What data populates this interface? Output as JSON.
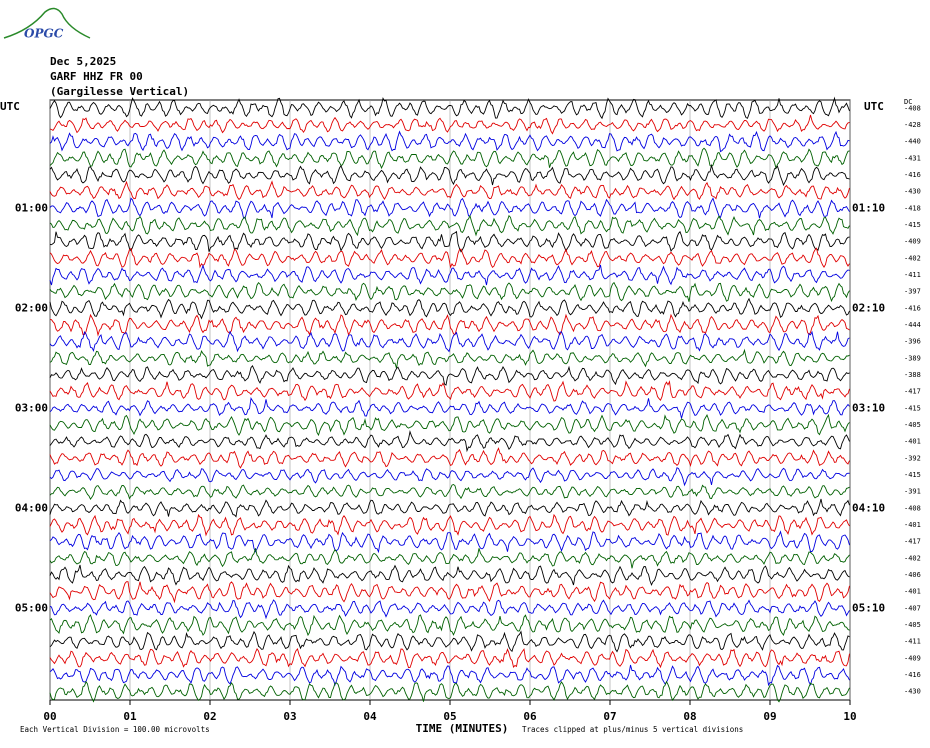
{
  "header": {
    "logo": "OPGC",
    "date": "Dec 5,2025",
    "station": "GARF HHZ FR 00",
    "location": "(Gargilesse Vertical)"
  },
  "chart_data": {
    "type": "helicorder",
    "x_label": "TIME (MINUTES)",
    "xlim": [
      0,
      10
    ],
    "xticks": [
      {
        "value": 0,
        "label": "00"
      },
      {
        "value": 1,
        "label": "01"
      },
      {
        "value": 2,
        "label": "02"
      },
      {
        "value": 3,
        "label": "03"
      },
      {
        "value": 4,
        "label": "04"
      },
      {
        "value": 5,
        "label": "05"
      },
      {
        "value": 6,
        "label": "06"
      },
      {
        "value": 7,
        "label": "07"
      },
      {
        "value": 8,
        "label": "08"
      },
      {
        "value": 9,
        "label": "09"
      },
      {
        "value": 10,
        "label": "10"
      }
    ],
    "grid": true,
    "left_title": "UTC",
    "right_title": "UTC",
    "offset_title": "DC",
    "left_labels": [
      null,
      null,
      null,
      null,
      null,
      null,
      "01:00",
      null,
      null,
      null,
      null,
      null,
      "02:00",
      null,
      null,
      null,
      null,
      null,
      "03:00",
      null,
      null,
      null,
      null,
      null,
      "04:00",
      null,
      null,
      null,
      null,
      null,
      "05:00",
      null,
      null,
      null,
      null,
      null
    ],
    "right_labels": [
      null,
      null,
      null,
      null,
      null,
      null,
      "01:10",
      null,
      null,
      null,
      null,
      null,
      "02:10",
      null,
      null,
      null,
      null,
      null,
      "03:10",
      null,
      null,
      null,
      null,
      null,
      "04:10",
      null,
      null,
      null,
      null,
      null,
      "05:10",
      null,
      null,
      null,
      null,
      null
    ],
    "trace_colors": [
      "#000000",
      "#e00000",
      "#0000e0",
      "#006000"
    ],
    "dc_offsets": [
      -408,
      -428,
      -440,
      -431,
      -416,
      -430,
      -418,
      -415,
      -409,
      -402,
      -411,
      -397,
      -416,
      -444,
      -396,
      -389,
      -388,
      -417,
      -415,
      -405,
      -401,
      -392,
      -415,
      -391,
      -408,
      -401,
      -417,
      -402,
      -406,
      -401,
      -407,
      -405,
      -411,
      -409,
      -416,
      -430
    ]
  },
  "footer": {
    "division": "Each Vertical Division =  100.00 microvolts",
    "clipping": "Traces clipped at plus/minus 5 vertical divisions"
  }
}
